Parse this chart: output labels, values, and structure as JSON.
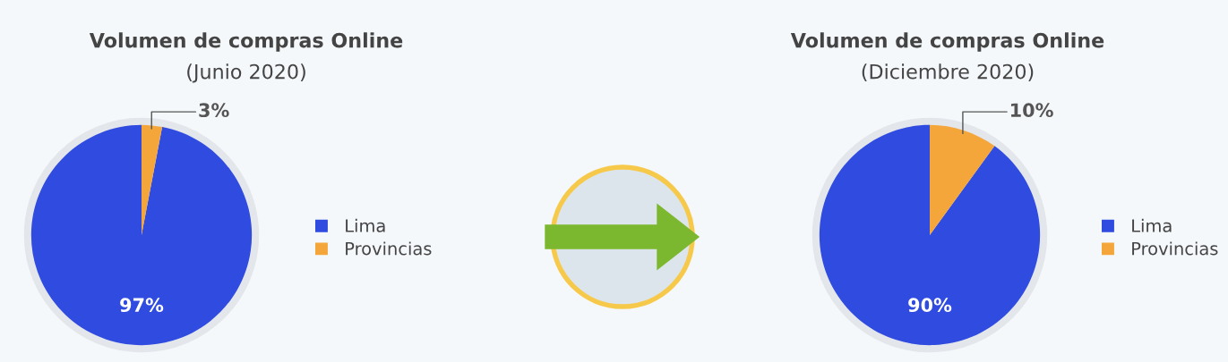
{
  "chart_data": [
    {
      "type": "pie",
      "title": "Volumen de compras Online",
      "subtitle": "(Junio 2020)",
      "categories": [
        "Lima",
        "Provincias"
      ],
      "values": [
        97,
        3
      ],
      "colors": [
        "#2f4be0",
        "#f4a63a"
      ],
      "value_labels": [
        "97%",
        "3%"
      ],
      "legend": "right"
    },
    {
      "type": "pie",
      "title": "Volumen de compras Online",
      "subtitle": "(Diciembre 2020)",
      "categories": [
        "Lima",
        "Provincias"
      ],
      "values": [
        90,
        10
      ],
      "colors": [
        "#2f4be0",
        "#f4a63a"
      ],
      "value_labels": [
        "90%",
        "10%"
      ],
      "legend": "right"
    }
  ]
}
